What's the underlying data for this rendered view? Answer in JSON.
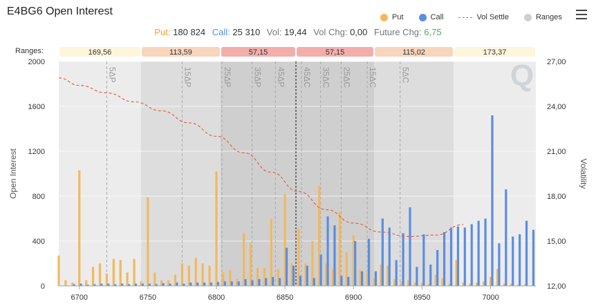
{
  "title": "E4BG6 Open Interest",
  "legend": [
    {
      "label": "Put",
      "color": "#f2b85e",
      "kind": "dot"
    },
    {
      "label": "Call",
      "color": "#5b8de0",
      "kind": "dot"
    },
    {
      "label": "Vol Settle",
      "color": "#e0604a",
      "kind": "dash"
    },
    {
      "label": "Ranges",
      "color": "#cfcfcf",
      "kind": "dot"
    }
  ],
  "stats": {
    "put_label": "Put:",
    "put_value": "180 824",
    "call_label": "Call:",
    "call_value": "25 310",
    "vol_label": "Vol:",
    "vol_value": "19,44",
    "volchg_label": "Vol Chg:",
    "volchg_value": "0,00",
    "futchg_label": "Future Chg:",
    "futchg_value": "6,75"
  },
  "colors": {
    "put": "#f2b85e",
    "call": "#5b8de0",
    "vol": "#e0604a",
    "green": "#4caf50",
    "accent": "#f0a030"
  },
  "ranges_label": "Ranges:",
  "chart_data": {
    "type": "bar",
    "ylabel": "Open Interest",
    "y2label": "Volatility",
    "ylim": [
      0,
      2000
    ],
    "y2lim": [
      12,
      27
    ],
    "xlim": [
      6685,
      7033
    ],
    "xticks": [
      "6700",
      "6750",
      "6800",
      "6850",
      "6900",
      "6950",
      "7000"
    ],
    "yticks": [
      "0",
      "400",
      "800",
      "1200",
      "1600",
      "2000"
    ],
    "y2ticks": [
      "12,00",
      "15,00",
      "18,00",
      "21,00",
      "24,00",
      "27,00"
    ],
    "ranges": [
      {
        "from": 6685,
        "to": 6745,
        "label": "169,56",
        "color": "#fdf6dc"
      },
      {
        "from": 6745,
        "to": 6803,
        "label": "113,59",
        "color": "#f8d5bd"
      },
      {
        "from": 6803,
        "to": 6858,
        "label": "57,15",
        "color": "#f3aeab"
      },
      {
        "from": 6858,
        "to": 6915,
        "label": "57,15",
        "color": "#f3aeab"
      },
      {
        "from": 6915,
        "to": 6973,
        "label": "115,02",
        "color": "#f8d5bd"
      },
      {
        "from": 6973,
        "to": 7033,
        "label": "173,37",
        "color": "#fdf6dc"
      }
    ],
    "bands": [
      {
        "from": 6685,
        "to": 6745,
        "shade": "#ececec"
      },
      {
        "from": 6745,
        "to": 6803,
        "shade": "#dddddd"
      },
      {
        "from": 6803,
        "to": 6858,
        "shade": "#cfcfcf"
      },
      {
        "from": 6858,
        "to": 6915,
        "shade": "#cfcfcf"
      },
      {
        "from": 6915,
        "to": 6973,
        "shade": "#dddddd"
      },
      {
        "from": 6973,
        "to": 7033,
        "shade": "#ececec"
      }
    ],
    "delta_lines": [
      {
        "x": 6720,
        "label": "5ΔP"
      },
      {
        "x": 6775,
        "label": "15ΔP"
      },
      {
        "x": 6804,
        "label": "25ΔP"
      },
      {
        "x": 6826,
        "label": "35ΔP"
      },
      {
        "x": 6843,
        "label": "45ΔP"
      },
      {
        "x": 6862,
        "label": "45ΔC"
      },
      {
        "x": 6876,
        "label": "35ΔC"
      },
      {
        "x": 6891,
        "label": "25ΔC"
      },
      {
        "x": 6910,
        "label": "15ΔC"
      },
      {
        "x": 6934,
        "label": "5ΔC"
      }
    ],
    "current_price": 6858,
    "series": [
      {
        "name": "Put",
        "color": "#f2b85e",
        "points": [
          [
            6685,
            270
          ],
          [
            6690,
            50
          ],
          [
            6695,
            30
          ],
          [
            6700,
            1030
          ],
          [
            6705,
            50
          ],
          [
            6710,
            170
          ],
          [
            6715,
            200
          ],
          [
            6720,
            110
          ],
          [
            6725,
            240
          ],
          [
            6730,
            230
          ],
          [
            6735,
            120
          ],
          [
            6740,
            240
          ],
          [
            6745,
            40
          ],
          [
            6750,
            790
          ],
          [
            6755,
            120
          ],
          [
            6760,
            50
          ],
          [
            6765,
            50
          ],
          [
            6770,
            100
          ],
          [
            6775,
            200
          ],
          [
            6780,
            180
          ],
          [
            6785,
            250
          ],
          [
            6790,
            200
          ],
          [
            6795,
            180
          ],
          [
            6800,
            1020
          ],
          [
            6805,
            120
          ],
          [
            6810,
            140
          ],
          [
            6815,
            60
          ],
          [
            6820,
            470
          ],
          [
            6825,
            380
          ],
          [
            6830,
            160
          ],
          [
            6835,
            160
          ],
          [
            6840,
            600
          ],
          [
            6845,
            150
          ],
          [
            6850,
            820
          ],
          [
            6855,
            200
          ],
          [
            6860,
            510
          ],
          [
            6865,
            200
          ],
          [
            6870,
            400
          ],
          [
            6875,
            890
          ],
          [
            6880,
            200
          ],
          [
            6885,
            150
          ],
          [
            6890,
            660
          ],
          [
            6895,
            300
          ],
          [
            6900,
            450
          ],
          [
            6905,
            140
          ],
          [
            6910,
            120
          ],
          [
            6915,
            70
          ],
          [
            6920,
            190
          ],
          [
            6925,
            180
          ],
          [
            6930,
            60
          ],
          [
            6935,
            40
          ],
          [
            6940,
            50
          ],
          [
            6945,
            30
          ],
          [
            6950,
            30
          ],
          [
            6955,
            20
          ],
          [
            6960,
            100
          ],
          [
            6965,
            70
          ],
          [
            6970,
            20
          ],
          [
            6975,
            230
          ],
          [
            6980,
            30
          ],
          [
            6985,
            20
          ],
          [
            6990,
            30
          ],
          [
            6995,
            40
          ],
          [
            7000,
            80
          ],
          [
            7005,
            150
          ],
          [
            7010,
            20
          ],
          [
            7015,
            20
          ],
          [
            7020,
            10
          ],
          [
            7025,
            15
          ]
        ]
      },
      {
        "name": "Call",
        "color": "#5b8de0",
        "points": [
          [
            6695,
            15
          ],
          [
            6700,
            20
          ],
          [
            6705,
            10
          ],
          [
            6710,
            15
          ],
          [
            6715,
            20
          ],
          [
            6720,
            20
          ],
          [
            6725,
            15
          ],
          [
            6730,
            20
          ],
          [
            6735,
            15
          ],
          [
            6740,
            20
          ],
          [
            6745,
            20
          ],
          [
            6750,
            20
          ],
          [
            6755,
            15
          ],
          [
            6760,
            25
          ],
          [
            6765,
            20
          ],
          [
            6770,
            30
          ],
          [
            6775,
            20
          ],
          [
            6780,
            30
          ],
          [
            6785,
            30
          ],
          [
            6790,
            30
          ],
          [
            6795,
            30
          ],
          [
            6800,
            35
          ],
          [
            6805,
            40
          ],
          [
            6810,
            40
          ],
          [
            6815,
            40
          ],
          [
            6820,
            60
          ],
          [
            6825,
            50
          ],
          [
            6830,
            60
          ],
          [
            6835,
            70
          ],
          [
            6840,
            80
          ],
          [
            6845,
            70
          ],
          [
            6850,
            340
          ],
          [
            6855,
            180
          ],
          [
            6860,
            90
          ],
          [
            6865,
            180
          ],
          [
            6870,
            70
          ],
          [
            6875,
            280
          ],
          [
            6880,
            620
          ],
          [
            6885,
            540
          ],
          [
            6890,
            90
          ],
          [
            6895,
            80
          ],
          [
            6900,
            400
          ],
          [
            6905,
            130
          ],
          [
            6910,
            420
          ],
          [
            6915,
            130
          ],
          [
            6920,
            600
          ],
          [
            6925,
            520
          ],
          [
            6930,
            230
          ],
          [
            6935,
            470
          ],
          [
            6940,
            700
          ],
          [
            6945,
            170
          ],
          [
            6950,
            460
          ],
          [
            6955,
            190
          ],
          [
            6960,
            320
          ],
          [
            6965,
            480
          ],
          [
            6970,
            520
          ],
          [
            6975,
            530
          ],
          [
            6980,
            520
          ],
          [
            6985,
            550
          ],
          [
            6990,
            580
          ],
          [
            6995,
            600
          ],
          [
            7000,
            1520
          ],
          [
            7005,
            380
          ],
          [
            7010,
            860
          ],
          [
            7015,
            440
          ],
          [
            7020,
            460
          ],
          [
            7025,
            580
          ],
          [
            7030,
            500
          ]
        ]
      },
      {
        "name": "Vol Settle",
        "color": "#e0604a",
        "vol": [
          [
            6685,
            25.9
          ],
          [
            6700,
            25.4
          ],
          [
            6720,
            24.9
          ],
          [
            6740,
            24.3
          ],
          [
            6760,
            23.7
          ],
          [
            6780,
            22.9
          ],
          [
            6800,
            22.0
          ],
          [
            6820,
            20.9
          ],
          [
            6840,
            19.6
          ],
          [
            6860,
            18.3
          ],
          [
            6880,
            17.1
          ],
          [
            6900,
            16.2
          ],
          [
            6920,
            15.6
          ],
          [
            6940,
            15.3
          ],
          [
            6960,
            15.4
          ],
          [
            6980,
            16.1
          ]
        ]
      }
    ]
  }
}
